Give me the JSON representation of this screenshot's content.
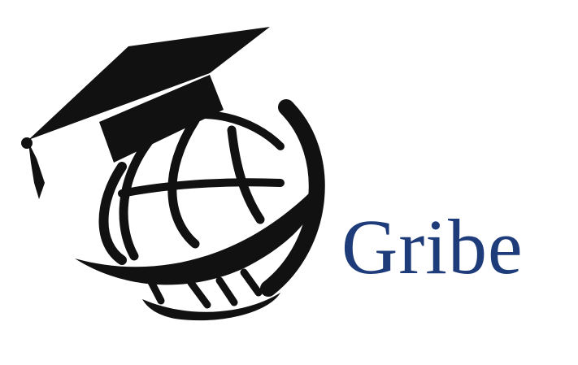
{
  "brand": {
    "name": "Gribe",
    "color": "#1f3c7a"
  },
  "logo": {
    "icon": "graduation-cap-globe-icon",
    "ink_color": "#111111"
  }
}
